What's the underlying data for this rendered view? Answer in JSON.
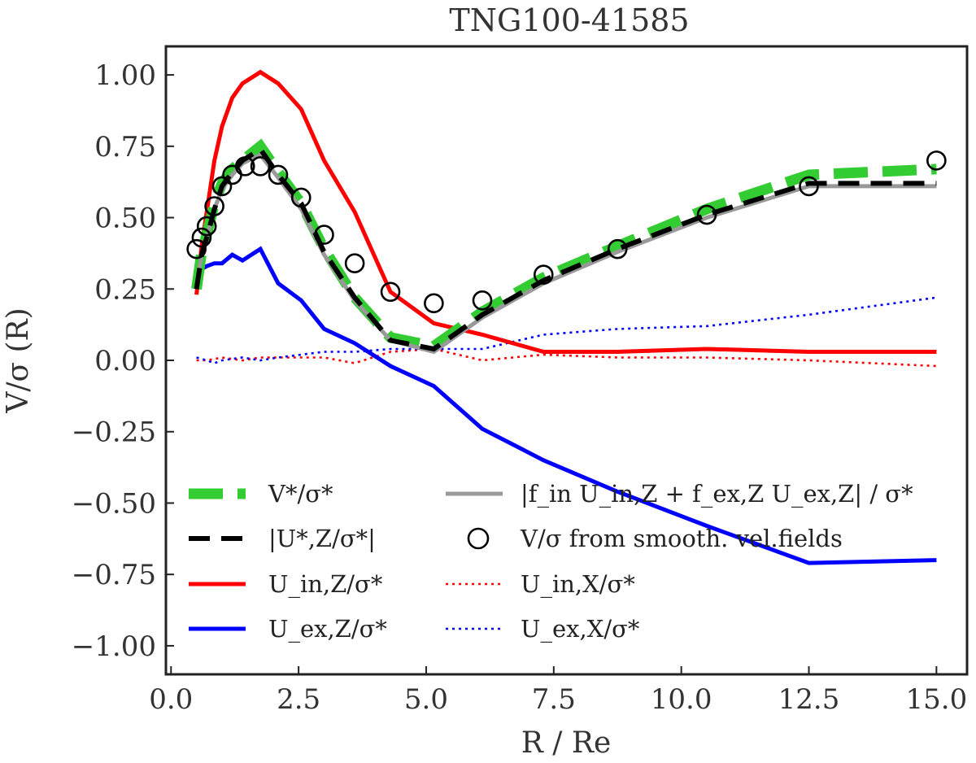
{
  "chart_data": {
    "type": "line",
    "title": "TNG100-41585",
    "xlabel": "R / Re",
    "ylabel": "V/σ (R)",
    "xlim": [
      -0.1,
      15.6
    ],
    "ylim": [
      -1.1,
      1.1
    ],
    "xticks": [
      0.0,
      2.5,
      5.0,
      7.5,
      10.0,
      12.5,
      15.0
    ],
    "xtick_labels": [
      "0.0",
      "2.5",
      "5.0",
      "7.5",
      "10.0",
      "12.5",
      "15.0"
    ],
    "yticks": [
      1.0,
      0.75,
      0.5,
      0.25,
      0.0,
      -0.25,
      -0.5,
      -0.75,
      -1.0
    ],
    "ytick_labels": [
      "1.00",
      "0.75",
      "0.50",
      "0.25",
      "0.00",
      "−0.25",
      "−0.50",
      "−0.75",
      "−1.00"
    ],
    "grid": false,
    "legend_position": "bottom",
    "series": [
      {
        "name": "V*/σ*",
        "style": "thick-dashed",
        "color": "#33cc33",
        "x": [
          0.5,
          0.6,
          0.7,
          0.85,
          1.0,
          1.2,
          1.4,
          1.75,
          2.1,
          2.55,
          3.0,
          3.6,
          4.3,
          5.15,
          6.1,
          7.3,
          8.75,
          10.5,
          12.5,
          15.0
        ],
        "y": [
          0.25,
          0.38,
          0.44,
          0.55,
          0.62,
          0.67,
          0.7,
          0.75,
          0.66,
          0.55,
          0.39,
          0.22,
          0.08,
          0.05,
          0.17,
          0.29,
          0.4,
          0.53,
          0.65,
          0.67
        ]
      },
      {
        "name": "|U*,Z/σ*|",
        "style": "dashed",
        "color": "#000000",
        "x": [
          0.5,
          0.6,
          0.7,
          0.85,
          1.0,
          1.2,
          1.4,
          1.75,
          2.1,
          2.55,
          3.0,
          3.6,
          4.3,
          5.15,
          6.1,
          7.3,
          8.75,
          10.5,
          12.5,
          15.0
        ],
        "y": [
          0.25,
          0.37,
          0.43,
          0.53,
          0.61,
          0.66,
          0.7,
          0.74,
          0.65,
          0.55,
          0.38,
          0.22,
          0.07,
          0.04,
          0.16,
          0.28,
          0.39,
          0.51,
          0.62,
          0.62
        ]
      },
      {
        "name": "U_in,Z/σ*",
        "style": "solid",
        "color": "#ff0000",
        "x": [
          0.5,
          0.6,
          0.7,
          0.85,
          1.0,
          1.2,
          1.4,
          1.75,
          2.1,
          2.55,
          3.0,
          3.6,
          4.3,
          5.15,
          6.1,
          7.3,
          8.75,
          10.5,
          12.5,
          15.0
        ],
        "y": [
          0.23,
          0.4,
          0.52,
          0.7,
          0.82,
          0.92,
          0.97,
          1.01,
          0.97,
          0.88,
          0.7,
          0.52,
          0.24,
          0.13,
          0.09,
          0.03,
          0.03,
          0.04,
          0.03,
          0.03
        ]
      },
      {
        "name": "U_ex,Z/σ*",
        "style": "solid",
        "color": "#0000ff",
        "x": [
          0.5,
          0.6,
          0.7,
          0.85,
          1.0,
          1.2,
          1.4,
          1.75,
          2.1,
          2.55,
          3.0,
          3.6,
          4.3,
          5.15,
          6.1,
          7.3,
          8.75,
          10.5,
          12.5,
          15.0
        ],
        "y": [
          0.25,
          0.32,
          0.33,
          0.34,
          0.34,
          0.37,
          0.35,
          0.39,
          0.27,
          0.21,
          0.11,
          0.06,
          -0.02,
          -0.09,
          -0.24,
          -0.35,
          -0.46,
          -0.58,
          -0.71,
          -0.7
        ]
      },
      {
        "name": "|f_in U_in,Z + f_ex,Z U_ex,Z| / σ*",
        "style": "solid",
        "color": "#999999",
        "x": [
          0.5,
          0.6,
          0.7,
          0.85,
          1.0,
          1.2,
          1.4,
          1.75,
          2.1,
          2.55,
          3.0,
          3.6,
          4.3,
          5.15,
          6.1,
          7.3,
          8.75,
          10.5,
          12.5,
          15.0
        ],
        "y": [
          0.25,
          0.37,
          0.43,
          0.53,
          0.6,
          0.65,
          0.69,
          0.72,
          0.64,
          0.53,
          0.37,
          0.21,
          0.07,
          0.03,
          0.15,
          0.27,
          0.38,
          0.5,
          0.61,
          0.61
        ]
      },
      {
        "name": "V/σ from smooth. vel.fields",
        "style": "markers",
        "color": "#000000",
        "x": [
          0.5,
          0.6,
          0.7,
          0.85,
          1.0,
          1.2,
          1.45,
          1.75,
          2.1,
          2.55,
          3.0,
          3.6,
          4.3,
          5.15,
          6.1,
          7.3,
          8.75,
          10.5,
          12.5,
          15.0
        ],
        "y": [
          0.39,
          0.43,
          0.47,
          0.54,
          0.61,
          0.65,
          0.68,
          0.68,
          0.65,
          0.57,
          0.44,
          0.34,
          0.24,
          0.2,
          0.21,
          0.3,
          0.39,
          0.51,
          0.61,
          0.7
        ]
      },
      {
        "name": "U_in,X/σ*",
        "style": "dotted",
        "color": "#ff0000",
        "x": [
          0.5,
          0.7,
          1.0,
          1.4,
          1.75,
          2.1,
          2.55,
          3.0,
          3.6,
          4.3,
          5.15,
          6.1,
          7.3,
          8.75,
          10.5,
          12.5,
          15.0
        ],
        "y": [
          0.0,
          0.0,
          0.01,
          0.0,
          0.01,
          0.01,
          0.01,
          0.01,
          -0.01,
          0.03,
          0.04,
          0.0,
          0.02,
          0.01,
          0.01,
          0.0,
          -0.02
        ]
      },
      {
        "name": "U_ex,X/σ*",
        "style": "dotted",
        "color": "#0000ff",
        "x": [
          0.5,
          0.7,
          0.85,
          1.0,
          1.4,
          1.75,
          2.1,
          2.55,
          3.0,
          3.6,
          4.3,
          5.15,
          6.1,
          7.3,
          8.75,
          10.5,
          12.5,
          15.0
        ],
        "y": [
          0.01,
          0.0,
          -0.01,
          0.0,
          0.01,
          0.0,
          0.01,
          0.02,
          0.03,
          0.03,
          0.04,
          0.04,
          0.04,
          0.09,
          0.11,
          0.12,
          0.16,
          0.22
        ]
      }
    ],
    "legend": [
      {
        "label": "V*/σ*",
        "series": 0
      },
      {
        "label": "|U*,Z/σ*|",
        "series": 1
      },
      {
        "label": "U_in,Z/σ*",
        "series": 2
      },
      {
        "label": "U_ex,Z/σ*",
        "series": 3
      },
      {
        "label": "|f_in U_in,Z + f_ex,Z U_ex,Z| / σ*",
        "series": 4
      },
      {
        "label": "V/σ from smooth. vel.fields",
        "series": 5
      },
      {
        "label": "U_in,X/σ*",
        "series": 6
      },
      {
        "label": "U_ex,X/σ*",
        "series": 7
      }
    ]
  }
}
